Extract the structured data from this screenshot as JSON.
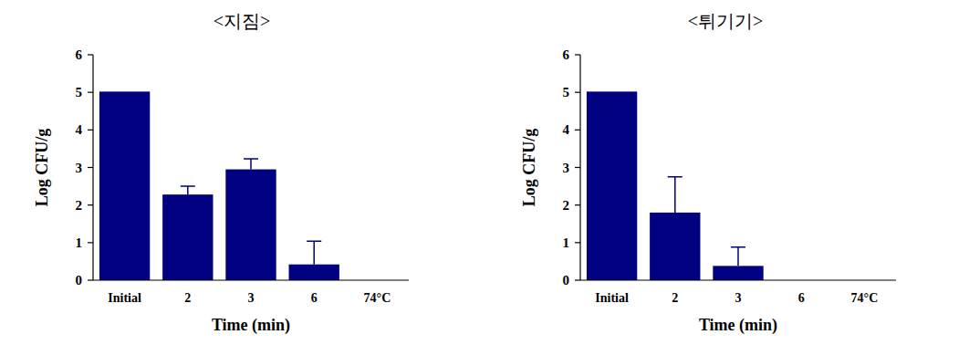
{
  "chart_data": [
    {
      "type": "bar",
      "title": "<지짐>",
      "categories": [
        "Initial",
        "2",
        "3",
        "6",
        "74°C"
      ],
      "values": [
        5.02,
        2.28,
        2.95,
        0.42,
        0
      ],
      "error": [
        null,
        0.22,
        0.28,
        0.62,
        null
      ],
      "color": "#000080",
      "x_label": "Time (min)",
      "y_label": "Log CFU/g",
      "ylim": [
        0,
        6
      ],
      "yticks": [
        0,
        1,
        2,
        3,
        4,
        5,
        6
      ]
    },
    {
      "type": "bar",
      "title": "<튀기기>",
      "categories": [
        "Initial",
        "2",
        "3",
        "6",
        "74°C"
      ],
      "values": [
        5.02,
        1.8,
        0.38,
        0,
        0
      ],
      "error": [
        null,
        0.95,
        0.5,
        null,
        null
      ],
      "color": "#000080",
      "x_label": "Time (min)",
      "y_label": "Log CFU/g",
      "ylim": [
        0,
        6
      ],
      "yticks": [
        0,
        1,
        2,
        3,
        4,
        5,
        6
      ]
    }
  ]
}
